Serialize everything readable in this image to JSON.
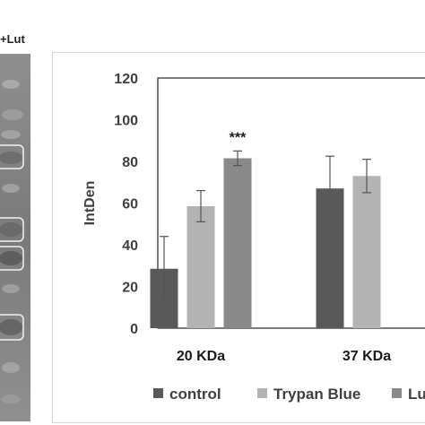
{
  "blot": {
    "label": "+Lut"
  },
  "chart_data": {
    "type": "bar",
    "title": "",
    "xlabel": "",
    "ylabel": "IntDen",
    "ylim": [
      0,
      120
    ],
    "yticks": [
      0,
      20,
      40,
      60,
      80,
      100,
      120
    ],
    "categories": [
      "20 KDa",
      "37 KDa"
    ],
    "series": [
      {
        "name": "control",
        "color": "#595959",
        "values": [
          28.5,
          67
        ],
        "errors": [
          15.5,
          15.5
        ]
      },
      {
        "name": "Trypan Blue",
        "color": "#b3b3b3",
        "values": [
          58.5,
          73
        ],
        "errors": [
          7.5,
          8
        ]
      },
      {
        "name": "Lut",
        "color": "#8a8a8a",
        "values": [
          81.5,
          0
        ],
        "errors": [
          3.5,
          0
        ]
      }
    ],
    "annotations": [
      {
        "category": "20 KDa",
        "series": "Lut",
        "text": "***"
      }
    ],
    "legend": "bottom",
    "grid": false
  }
}
